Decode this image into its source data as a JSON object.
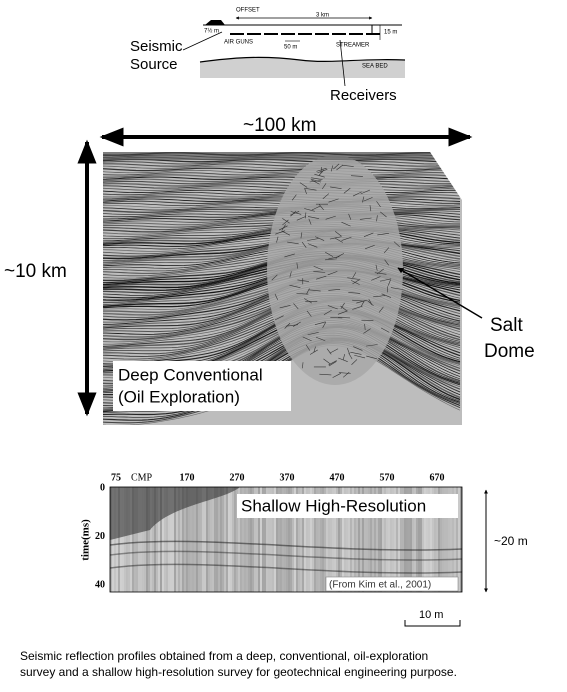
{
  "schematic": {
    "offset": "OFFSET",
    "streamer_length": "3 km",
    "gun_depth": "7½ m",
    "streamer_depth": "15 m",
    "air_guns": "AIR GUNS",
    "spacing": "50 m",
    "streamer": "STREAMER",
    "sea_bed": "SEA BED",
    "source_label": [
      "Seismic",
      "Source"
    ],
    "receivers": "Receivers"
  },
  "deep_profile": {
    "width_label": "~100 km",
    "depth_label": "~10 km",
    "feature_label": [
      "Salt",
      "Dome"
    ],
    "caption_box": [
      "Deep Conventional",
      "(Oil Exploration)"
    ]
  },
  "shallow_profile": {
    "cmp_label": "CMP",
    "cmp_ticks": [
      "75",
      "170",
      "270",
      "370",
      "470",
      "570",
      "670"
    ],
    "time_label": "time(ms)",
    "time_ticks": [
      "0",
      "20",
      "40"
    ],
    "caption_box": "Shallow High-Resolution",
    "source": "(From Kim et al., 2001)",
    "depth_label": "~20 m",
    "scale_bar": "10 m"
  },
  "caption": [
    "Seismic reflection profiles obtained from a deep, conventional, oil-exploration",
    "survey and a shallow high-resolution survey for geotechnical engineering purpose."
  ]
}
